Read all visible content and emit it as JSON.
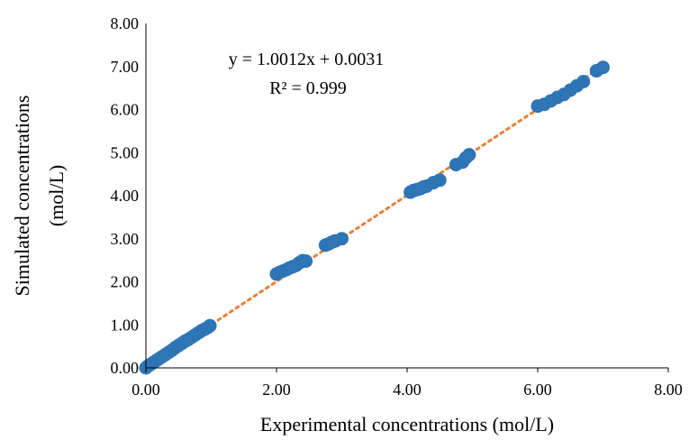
{
  "chart_data": {
    "type": "scatter",
    "title": "",
    "xlabel": "Experimental concentrations (mol/L)",
    "ylabel_lines": [
      "Simulated concentrations",
      "(mol/L)"
    ],
    "xlim": [
      0,
      8
    ],
    "ylim": [
      0,
      8
    ],
    "x_ticks": [
      "0.00",
      "2.00",
      "4.00",
      "6.00",
      "8.00"
    ],
    "y_ticks": [
      "0.00",
      "1.00",
      "2.00",
      "3.00",
      "4.00",
      "5.00",
      "6.00",
      "7.00",
      "8.00"
    ],
    "grid": false,
    "legend": "none",
    "colors": {
      "points": "#2E75B6",
      "trendline": "#ED7D31",
      "axis": "#000000"
    },
    "trendline": {
      "style": "dotted",
      "slope": 1.0012,
      "intercept": 0.0031
    },
    "annotations": {
      "equation": "y = 1.0012x + 0.0031",
      "r_squared": "R² = 0.999"
    },
    "series": [
      {
        "points": [
          [
            0.0,
            0.0
          ],
          [
            0.02,
            0.03
          ],
          [
            0.05,
            0.06
          ],
          [
            0.08,
            0.09
          ],
          [
            0.12,
            0.13
          ],
          [
            0.16,
            0.17
          ],
          [
            0.2,
            0.21
          ],
          [
            0.25,
            0.26
          ],
          [
            0.3,
            0.31
          ],
          [
            0.35,
            0.36
          ],
          [
            0.4,
            0.41
          ],
          [
            0.45,
            0.47
          ],
          [
            0.5,
            0.52
          ],
          [
            0.55,
            0.57
          ],
          [
            0.6,
            0.62
          ],
          [
            0.65,
            0.66
          ],
          [
            0.7,
            0.71
          ],
          [
            0.75,
            0.76
          ],
          [
            0.8,
            0.81
          ],
          [
            0.85,
            0.86
          ],
          [
            0.9,
            0.9
          ],
          [
            0.95,
            0.94
          ],
          [
            0.98,
            0.98
          ],
          [
            2.0,
            2.18
          ],
          [
            2.05,
            2.22
          ],
          [
            2.1,
            2.25
          ],
          [
            2.15,
            2.28
          ],
          [
            2.2,
            2.32
          ],
          [
            2.25,
            2.35
          ],
          [
            2.3,
            2.38
          ],
          [
            2.35,
            2.44
          ],
          [
            2.4,
            2.49
          ],
          [
            2.45,
            2.48
          ],
          [
            2.75,
            2.85
          ],
          [
            2.8,
            2.88
          ],
          [
            2.85,
            2.92
          ],
          [
            2.9,
            2.95
          ],
          [
            3.0,
            3.0
          ],
          [
            4.05,
            4.08
          ],
          [
            4.1,
            4.12
          ],
          [
            4.15,
            4.14
          ],
          [
            4.2,
            4.16
          ],
          [
            4.25,
            4.2
          ],
          [
            4.3,
            4.22
          ],
          [
            4.4,
            4.3
          ],
          [
            4.5,
            4.36
          ],
          [
            4.75,
            4.72
          ],
          [
            4.85,
            4.78
          ],
          [
            4.9,
            4.88
          ],
          [
            4.95,
            4.95
          ],
          [
            6.0,
            6.08
          ],
          [
            6.1,
            6.12
          ],
          [
            6.2,
            6.2
          ],
          [
            6.3,
            6.28
          ],
          [
            6.4,
            6.35
          ],
          [
            6.5,
            6.45
          ],
          [
            6.6,
            6.55
          ],
          [
            6.7,
            6.65
          ],
          [
            6.9,
            6.9
          ],
          [
            7.0,
            6.98
          ]
        ]
      }
    ]
  }
}
